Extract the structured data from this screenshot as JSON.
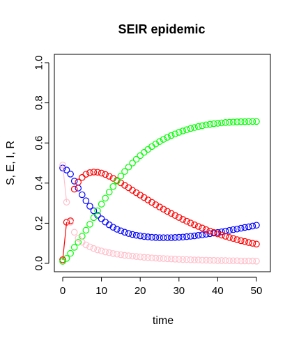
{
  "chart_data": {
    "type": "scatter",
    "title": "SEIR epidemic",
    "xlabel": "time",
    "ylabel": "S, E, I, R",
    "xlim": [
      0,
      50
    ],
    "ylim": [
      0,
      1
    ],
    "xticks": [
      0,
      10,
      20,
      30,
      40,
      50
    ],
    "xtick_labels": [
      "0",
      "10",
      "20",
      "30",
      "40",
      "50"
    ],
    "yticks": [
      0,
      0.2,
      0.4,
      0.6,
      0.8,
      1
    ],
    "ytick_labels": [
      "0.0",
      "0.2",
      "0.4",
      "0.6",
      "0.8",
      "1.0"
    ],
    "grid": false,
    "legend": "none",
    "x": [
      0,
      1,
      2,
      3,
      4,
      5,
      6,
      7,
      8,
      9,
      10,
      11,
      12,
      13,
      14,
      15,
      16,
      17,
      18,
      19,
      20,
      21,
      22,
      23,
      24,
      25,
      26,
      27,
      28,
      29,
      30,
      31,
      32,
      33,
      34,
      35,
      36,
      37,
      38,
      39,
      40,
      41,
      42,
      43,
      44,
      45,
      46,
      47,
      48,
      49,
      50
    ],
    "series": [
      {
        "color": "#0000ff",
        "marker": "circle",
        "values": [
          0.475,
          0.465,
          0.445,
          0.41,
          0.375,
          0.342,
          0.312,
          0.285,
          0.262,
          0.24,
          0.222,
          0.206,
          0.192,
          0.18,
          0.17,
          0.162,
          0.155,
          0.149,
          0.144,
          0.14,
          0.137,
          0.134,
          0.132,
          0.13,
          0.129,
          0.128,
          0.128,
          0.128,
          0.128,
          0.129,
          0.13,
          0.131,
          0.133,
          0.135,
          0.137,
          0.14,
          0.142,
          0.145,
          0.148,
          0.151,
          0.154,
          0.157,
          0.161,
          0.164,
          0.168,
          0.171,
          0.175,
          0.179,
          0.182,
          0.186,
          0.19
        ]
      },
      {
        "color": "#ff0000",
        "marker": "circle",
        "line_segment_first": true,
        "values": [
          0.018,
          0.205,
          0.212,
          0.37,
          0.405,
          0.428,
          0.444,
          0.452,
          0.455,
          0.454,
          0.45,
          0.443,
          0.434,
          0.424,
          0.413,
          0.401,
          0.389,
          0.377,
          0.364,
          0.352,
          0.34,
          0.328,
          0.316,
          0.304,
          0.292,
          0.281,
          0.27,
          0.259,
          0.249,
          0.239,
          0.229,
          0.219,
          0.21,
          0.201,
          0.192,
          0.184,
          0.176,
          0.168,
          0.161,
          0.154,
          0.147,
          0.141,
          0.135,
          0.129,
          0.124,
          0.118,
          0.113,
          0.109,
          0.104,
          0.1,
          0.096
        ]
      },
      {
        "color": "#00ff00",
        "marker": "circle",
        "values": [
          0.01,
          0.025,
          0.05,
          0.08,
          0.105,
          0.135,
          0.165,
          0.195,
          0.228,
          0.262,
          0.295,
          0.325,
          0.355,
          0.383,
          0.41,
          0.435,
          0.458,
          0.48,
          0.5,
          0.519,
          0.537,
          0.553,
          0.568,
          0.582,
          0.595,
          0.607,
          0.618,
          0.628,
          0.637,
          0.645,
          0.653,
          0.66,
          0.666,
          0.672,
          0.677,
          0.682,
          0.686,
          0.69,
          0.693,
          0.696,
          0.698,
          0.7,
          0.702,
          0.703,
          0.704,
          0.705,
          0.706,
          0.706,
          0.707,
          0.707,
          0.707
        ]
      },
      {
        "color": "#ffc0cb",
        "marker": "circle",
        "line_segment_first": true,
        "values": [
          0.49,
          0.305,
          0.205,
          0.155,
          0.125,
          0.105,
          0.092,
          0.082,
          0.074,
          0.067,
          0.062,
          0.057,
          0.053,
          0.049,
          0.046,
          0.043,
          0.04,
          0.038,
          0.036,
          0.034,
          0.032,
          0.03,
          0.029,
          0.027,
          0.026,
          0.025,
          0.024,
          0.023,
          0.022,
          0.021,
          0.02,
          0.019,
          0.019,
          0.018,
          0.017,
          0.017,
          0.016,
          0.016,
          0.015,
          0.015,
          0.014,
          0.014,
          0.014,
          0.013,
          0.013,
          0.013,
          0.012,
          0.012,
          0.012,
          0.012,
          0.011
        ]
      }
    ]
  }
}
